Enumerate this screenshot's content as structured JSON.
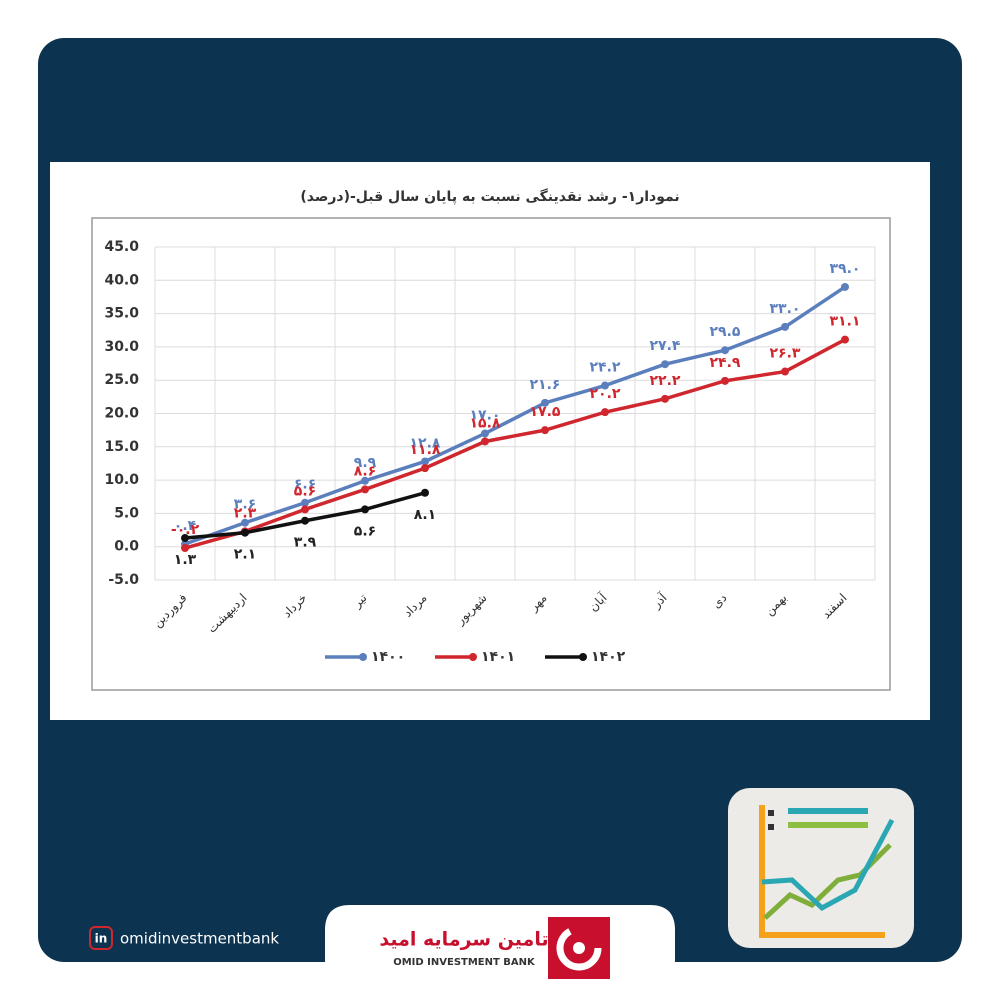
{
  "chart_data": {
    "type": "line",
    "title": "نمودار۱- رشد نقدینگی نسبت به پایان سال قبل-(درصد)",
    "categories": [
      "فروردین",
      "اردیبهشت",
      "خرداد",
      "تیر",
      "مرداد",
      "شهریور",
      "مهر",
      "آبان",
      "آذر",
      "دی",
      "بهمن",
      "اسفند"
    ],
    "series": [
      {
        "name": "۱۴۰۰",
        "color": "#5b7fbd",
        "values": [
          0.4,
          3.6,
          6.6,
          9.9,
          12.8,
          17.0,
          21.6,
          24.2,
          27.4,
          29.5,
          33.0,
          39.0
        ],
        "value_labels": [
          "۰.۴",
          "۳.۶",
          "۶.۶",
          "۹.۹",
          "۱۲.۸",
          "۱۷.۰",
          "۲۱.۶",
          "۲۴.۲",
          "۲۷.۴",
          "۲۹.۵",
          "۳۳.۰",
          "۳۹.۰"
        ]
      },
      {
        "name": "۱۴۰۱",
        "color": "#d0262e",
        "values": [
          -0.2,
          2.3,
          5.6,
          8.6,
          11.8,
          15.8,
          17.5,
          20.2,
          22.2,
          24.9,
          26.3,
          31.1
        ],
        "value_labels": [
          "-۰.۲",
          "۲.۳",
          "۵.۶",
          "۸.۶",
          "۱۱.۸",
          "۱۵.۸",
          "۱۷.۵",
          "۲۰.۲",
          "۲۲.۲",
          "۲۴.۹",
          "۲۶.۳",
          "۳۱.۱"
        ]
      },
      {
        "name": "۱۴۰۲",
        "color": "#111111",
        "values": [
          1.3,
          2.1,
          3.9,
          5.6,
          8.1,
          null,
          null,
          null,
          null,
          null,
          null,
          null
        ],
        "value_labels": [
          "۱.۳",
          "۲.۱",
          "۳.۹",
          "۵.۶",
          "۸.۱",
          null,
          null,
          null,
          null,
          null,
          null,
          null
        ]
      }
    ],
    "ylim": [
      -5,
      45
    ],
    "yticks": [
      {
        "value": -5,
        "label": "-5.0"
      },
      {
        "value": 0,
        "label": "0.0"
      },
      {
        "value": 5,
        "label": "5.0"
      },
      {
        "value": 10,
        "label": "10.0"
      },
      {
        "value": 15,
        "label": "15.0"
      },
      {
        "value": 20,
        "label": "20.0"
      },
      {
        "value": 25,
        "label": "25.0"
      },
      {
        "value": 30,
        "label": "30.0"
      },
      {
        "value": 35,
        "label": "35.0"
      },
      {
        "value": 40,
        "label": "40.0"
      },
      {
        "value": 45,
        "label": "45.0"
      }
    ],
    "grid": true,
    "legend": "bottom"
  },
  "footer": {
    "social": "omidinvestmentbank",
    "logo_fa": "تامین سرمایه امید",
    "logo_en": "OMID INVESTMENT BANK"
  }
}
